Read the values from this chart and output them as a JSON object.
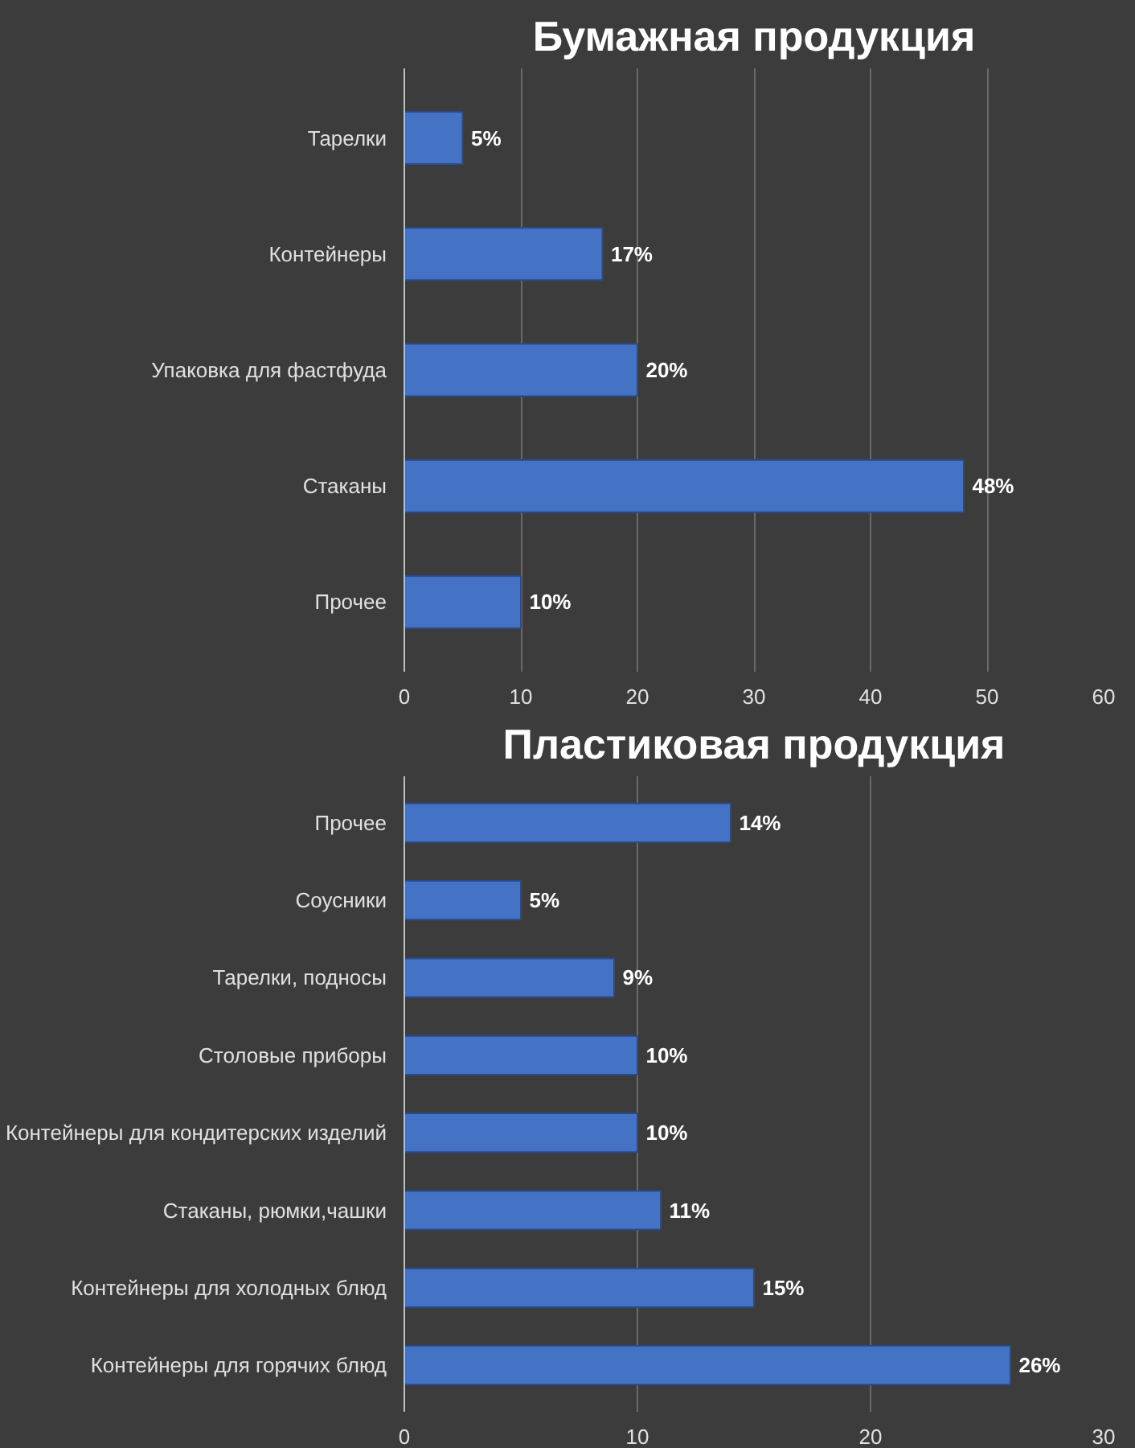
{
  "chart_data": [
    {
      "type": "bar",
      "orientation": "horizontal",
      "title": "Бумажная продукция",
      "categories": [
        "Тарелки",
        "Контейнеры",
        "Упаковка для фастфуда",
        "Стаканы",
        "Прочее"
      ],
      "values": [
        5,
        17,
        20,
        48,
        10
      ],
      "value_labels": [
        "5%",
        "17%",
        "20%",
        "48%",
        "10%"
      ],
      "color": "#4472c4",
      "xlim": [
        0,
        60
      ],
      "xticks": [
        0,
        10,
        20,
        30,
        40,
        50,
        60
      ],
      "grid": "x"
    },
    {
      "type": "bar",
      "orientation": "horizontal",
      "title": "Пластиковая продукция",
      "categories": [
        "Прочее",
        "Соусники",
        "Тарелки, подносы",
        "Столовые приборы",
        "Контейнеры для кондитерских изделий",
        "Стаканы, рюмки,чашки",
        "Контейнеры для холодных блюд",
        "Контейнеры для горячих блюд"
      ],
      "values": [
        14,
        5,
        9,
        10,
        10,
        11,
        15,
        26
      ],
      "value_labels": [
        "14%",
        "5%",
        "9%",
        "10%",
        "10%",
        "11%",
        "15%",
        "26%"
      ],
      "color": "#4472c4",
      "xlim": [
        0,
        30
      ],
      "xticks": [
        0,
        10,
        20,
        30
      ],
      "grid": "x"
    }
  ]
}
